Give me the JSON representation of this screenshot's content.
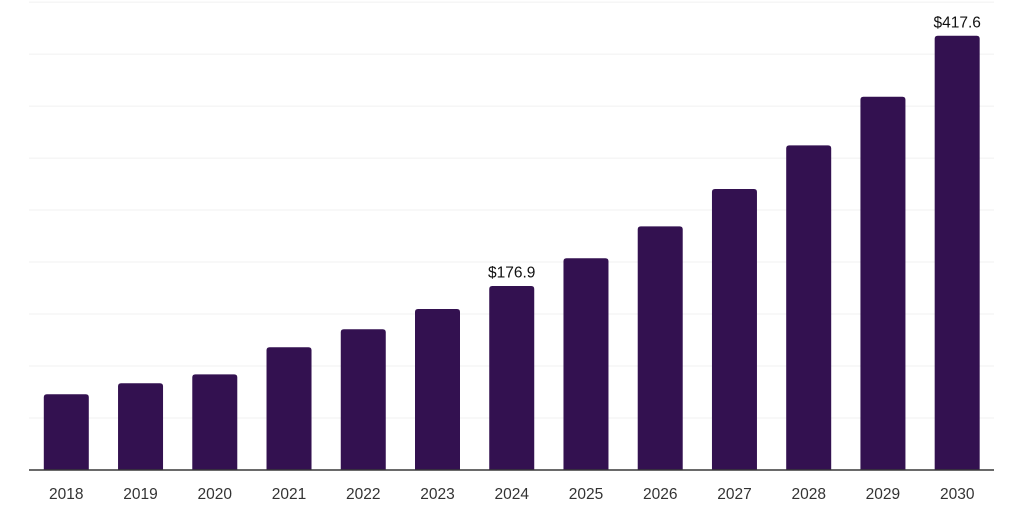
{
  "chart_data": {
    "type": "bar",
    "title": "",
    "xlabel": "",
    "ylabel": "",
    "categories": [
      "2018",
      "2019",
      "2020",
      "2021",
      "2022",
      "2023",
      "2024",
      "2025",
      "2026",
      "2027",
      "2028",
      "2029",
      "2030"
    ],
    "values": [
      72.8,
      83.4,
      92.0,
      118.0,
      135.3,
      154.8,
      176.9,
      203.6,
      234.3,
      270.2,
      312.2,
      359.0,
      417.6
    ],
    "labeled_points": [
      {
        "category": "2024",
        "label": "$176.9"
      },
      {
        "category": "2030",
        "label": "$417.6"
      }
    ],
    "ylim": [
      0,
      452
    ],
    "gridline_interval": 50,
    "grid": "horizontal-only",
    "legend": "none",
    "y_axis_ticks_visible": false,
    "bar_color": "#331150",
    "axis_color": "#383838",
    "gridline_color": "#f1f1f1",
    "value_label_color": "#111111",
    "tick_label_color": "#333333"
  }
}
